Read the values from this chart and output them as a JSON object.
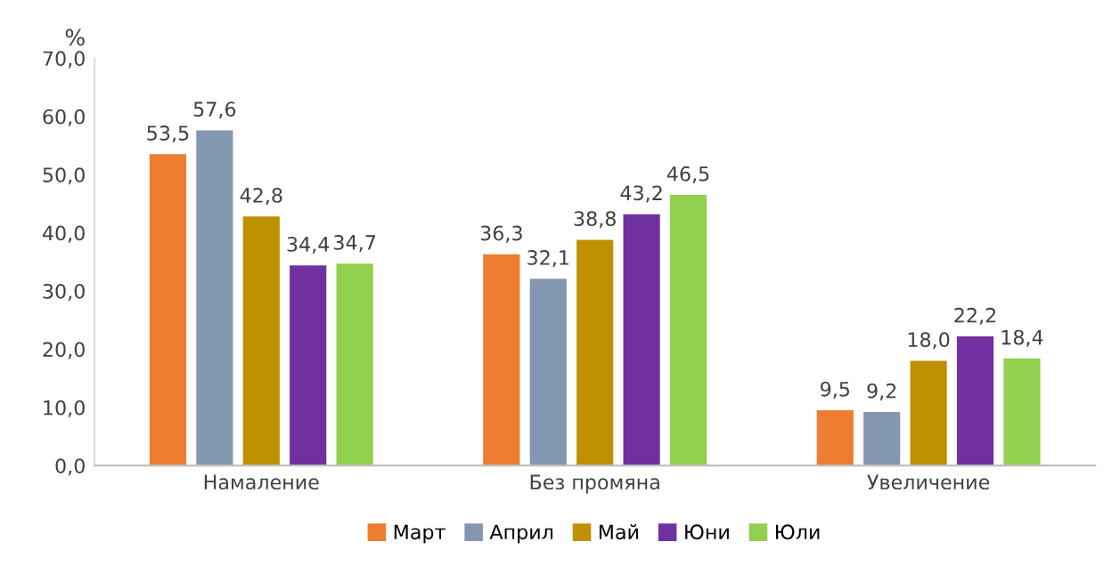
{
  "chart_data": {
    "type": "bar",
    "ylabel": "%",
    "categories": [
      "Намаление",
      "Без промяна",
      "Увеличение"
    ],
    "series": [
      {
        "name": "Март",
        "color": "#ed7d31",
        "values": [
          53.5,
          36.3,
          9.5
        ],
        "value_labels": [
          "53,5",
          "36,3",
          "9,5"
        ]
      },
      {
        "name": "Април",
        "color": "#8497b0",
        "values": [
          57.6,
          32.1,
          9.2
        ],
        "value_labels": [
          "57,6",
          "32,1",
          "9,2"
        ]
      },
      {
        "name": "Май",
        "color": "#bf9000",
        "values": [
          42.8,
          38.8,
          18.0
        ],
        "value_labels": [
          "42,8",
          "38,8",
          "18,0"
        ]
      },
      {
        "name": "Юни",
        "color": "#7030a0",
        "values": [
          34.4,
          43.2,
          22.2
        ],
        "value_labels": [
          "34,4",
          "43,2",
          "22,2"
        ]
      },
      {
        "name": "Юли",
        "color": "#92d050",
        "values": [
          34.7,
          46.5,
          18.4
        ],
        "value_labels": [
          "34,7",
          "46,5",
          "18,4"
        ]
      }
    ],
    "ylim": [
      0,
      70
    ],
    "yticks": [
      {
        "value": 0,
        "label": "0,0"
      },
      {
        "value": 10,
        "label": "10,0"
      },
      {
        "value": 20,
        "label": "20,0"
      },
      {
        "value": 30,
        "label": "30,0"
      },
      {
        "value": 40,
        "label": "40,0"
      },
      {
        "value": 50,
        "label": "50,0"
      },
      {
        "value": 60,
        "label": "60,0"
      },
      {
        "value": 70,
        "label": "70,0"
      }
    ],
    "grid": false,
    "legend": "bottom"
  }
}
